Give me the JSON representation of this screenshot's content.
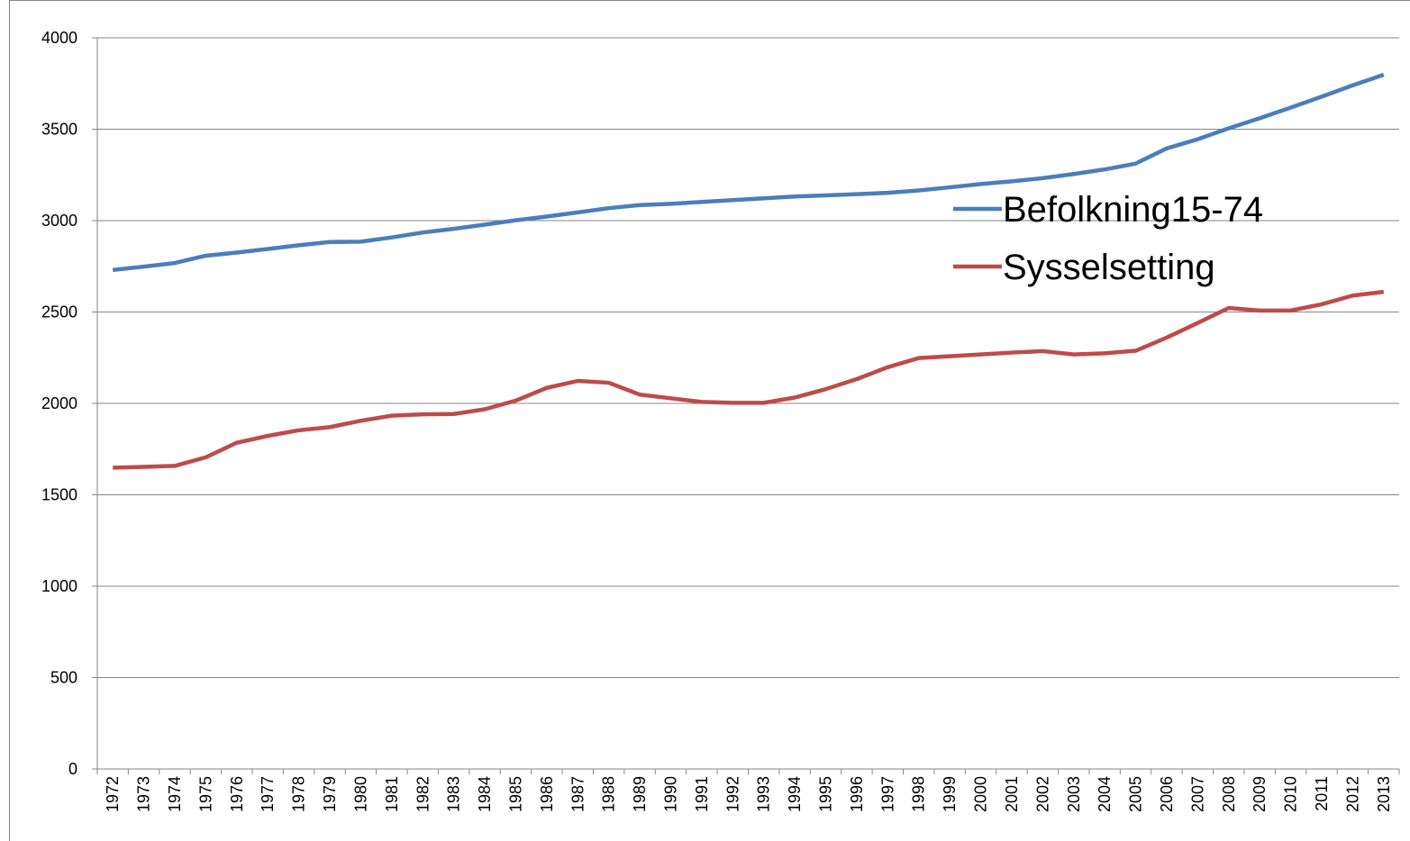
{
  "chart_data": {
    "type": "line",
    "categories": [
      "1972",
      "1973",
      "1974",
      "1975",
      "1976",
      "1977",
      "1978",
      "1979",
      "1980",
      "1981",
      "1982",
      "1983",
      "1984",
      "1985",
      "1986",
      "1987",
      "1988",
      "1989",
      "1990",
      "1991",
      "1992",
      "1993",
      "1994",
      "1995",
      "1996",
      "1997",
      "1998",
      "1999",
      "2000",
      "2001",
      "2002",
      "2003",
      "2004",
      "2005",
      "2006",
      "2007",
      "2008",
      "2009",
      "2010",
      "2011",
      "2012",
      "2013"
    ],
    "series": [
      {
        "name": "Befolkning15-74",
        "color": "#4a7ebb",
        "values": [
          2730,
          2748,
          2768,
          2808,
          2825,
          2845,
          2865,
          2883,
          2885,
          2908,
          2935,
          2955,
          2978,
          3002,
          3022,
          3045,
          3068,
          3085,
          3092,
          3102,
          3112,
          3122,
          3132,
          3138,
          3145,
          3152,
          3165,
          3182,
          3200,
          3215,
          3232,
          3255,
          3280,
          3312,
          3395,
          3445,
          3505,
          3560,
          3618,
          3678,
          3740,
          3798
        ]
      },
      {
        "name": "Sysselsetting",
        "color": "#be4b48",
        "values": [
          1648,
          1653,
          1658,
          1705,
          1785,
          1822,
          1853,
          1870,
          1905,
          1933,
          1940,
          1942,
          1968,
          2015,
          2085,
          2123,
          2113,
          2048,
          2028,
          2008,
          2003,
          2003,
          2032,
          2078,
          2133,
          2198,
          2248,
          2258,
          2268,
          2278,
          2286,
          2268,
          2274,
          2288,
          2360,
          2440,
          2522,
          2508,
          2508,
          2542,
          2590,
          2610
        ]
      }
    ],
    "ylim": [
      0,
      4000
    ],
    "yticks": [
      0,
      500,
      1000,
      1500,
      2000,
      2500,
      3000,
      3500,
      4000
    ],
    "grid": true
  }
}
